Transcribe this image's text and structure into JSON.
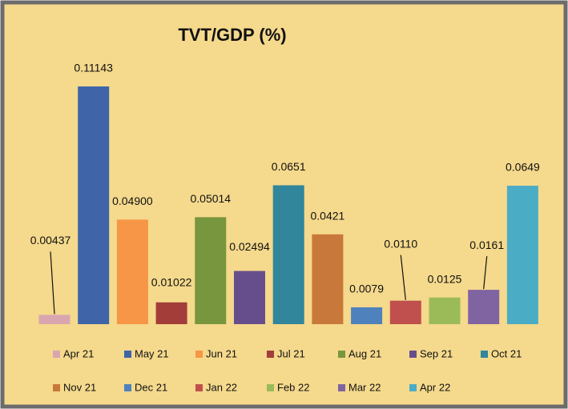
{
  "chart_data": {
    "type": "bar",
    "title": "TVT/GDP (%)",
    "categories": [
      "Apr 21",
      "May 21",
      "Jun 21",
      "Jul 21",
      "Aug 21",
      "Sep 21",
      "Oct 21",
      "Nov 21",
      "Dec 21",
      "Jan 22",
      "Feb 22",
      "Mar 22",
      "Apr 22"
    ],
    "values": [
      0.00437,
      0.11143,
      0.049,
      0.01022,
      0.05014,
      0.02494,
      0.0651,
      0.0421,
      0.0079,
      0.011,
      0.0125,
      0.0161,
      0.0649
    ],
    "value_labels": [
      "0.00437",
      "0.11143",
      "0.04900",
      "0.01022",
      "0.05014",
      "0.02494",
      "0.0651",
      "0.0421",
      "0.0079",
      "0.0110",
      "0.0125",
      "0.0161",
      "0.0649"
    ],
    "colors": [
      "#d9a6b0",
      "#3f65a8",
      "#f79646",
      "#a33d3a",
      "#77963d",
      "#664e8c",
      "#31869b",
      "#c8783a",
      "#4f81bd",
      "#c0504d",
      "#9bbb59",
      "#8064a2",
      "#4bacc6"
    ],
    "legend": "bottom"
  }
}
